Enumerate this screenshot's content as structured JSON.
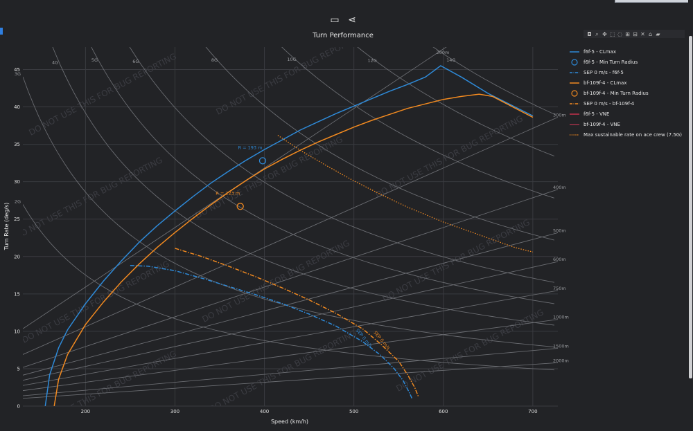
{
  "toolbar": {
    "ruler_icon": "ruler-icon",
    "share_icon": "share-icon"
  },
  "modebar_icons": [
    "camera-icon",
    "zoom-icon",
    "pan-icon",
    "box-select-icon",
    "lasso-icon",
    "zoom-in-icon",
    "zoom-out-icon",
    "autoscale-icon",
    "home-icon",
    "plotly-logo-icon"
  ],
  "chart_data": {
    "type": "line",
    "title": "Turn Performance",
    "xlabel": "Speed (km/h)",
    "ylabel": "Turn Rate (deg/s)",
    "xlim": [
      130,
      728
    ],
    "ylim": [
      0,
      48
    ],
    "xticks": [
      200,
      300,
      400,
      500,
      600,
      700
    ],
    "yticks": [
      0,
      5,
      10,
      15,
      20,
      25,
      30,
      35,
      40,
      45
    ],
    "grid": true,
    "legend_position": "right",
    "watermark": "DO NOT USE THIS FOR BUG REPORTING",
    "g_lines": [
      {
        "label": "2G",
        "n": 2
      },
      {
        "label": "3G",
        "n": 3
      },
      {
        "label": "4G",
        "n": 4
      },
      {
        "label": "5G",
        "n": 5
      },
      {
        "label": "6G",
        "n": 6
      },
      {
        "label": "8G",
        "n": 8
      },
      {
        "label": "10G",
        "n": 10
      },
      {
        "label": "12G",
        "n": 12
      },
      {
        "label": "14G",
        "n": 14
      }
    ],
    "radius_lines": [
      {
        "label": "200m",
        "r": 200
      },
      {
        "label": "300m",
        "r": 300
      },
      {
        "label": "400m",
        "r": 400
      },
      {
        "label": "500m",
        "r": 500
      },
      {
        "label": "600m",
        "r": 600
      },
      {
        "label": "750m",
        "r": 750
      },
      {
        "label": "1000m",
        "r": 1000
      },
      {
        "label": "1500m",
        "r": 1500
      },
      {
        "label": "2000m",
        "r": 2000
      }
    ],
    "series": [
      {
        "name": "f6f-5 - CLmax",
        "color": "#2e8ad8",
        "style": "solid",
        "x": [
          155,
          160,
          170,
          180,
          200,
          220,
          240,
          260,
          280,
          300,
          320,
          340,
          360,
          380,
          400,
          420,
          440,
          460,
          480,
          500,
          520,
          540,
          560,
          580,
          597,
          620,
          650,
          700
        ],
        "y": [
          0,
          4.2,
          7.8,
          10.2,
          13.7,
          16.7,
          19.4,
          21.9,
          24.1,
          26.1,
          28.0,
          29.8,
          31.4,
          32.9,
          34.3,
          35.6,
          36.9,
          38.0,
          39.1,
          40.1,
          41.1,
          42.1,
          43.0,
          44.0,
          45.5,
          44.0,
          41.8,
          38.8
        ]
      },
      {
        "name": "f6f-5 - Min Turn Radius",
        "color": "#2e8ad8",
        "style": "marker",
        "x": [
          398
        ],
        "y": [
          32.8
        ],
        "annotation": "R = 193 m"
      },
      {
        "name": "SEP 0 m/s - f6f-5",
        "color": "#2e8ad8",
        "style": "dashdot",
        "x": [
          250,
          270,
          300,
          330,
          360,
          390,
          420,
          450,
          480,
          510,
          530,
          545,
          555,
          562,
          565
        ],
        "y": [
          18.8,
          18.7,
          18.1,
          17.1,
          16.0,
          14.9,
          13.7,
          12.3,
          10.7,
          8.6,
          6.8,
          5.0,
          3.4,
          1.8,
          1.0
        ],
        "annotation": "SEP 0 m/s"
      },
      {
        "name": "bf-109f-4 - CLmax",
        "color": "#f28a20",
        "style": "solid",
        "x": [
          165,
          170,
          180,
          200,
          220,
          240,
          260,
          280,
          300,
          320,
          340,
          360,
          380,
          400,
          420,
          440,
          460,
          480,
          500,
          520,
          540,
          560,
          580,
          600,
          620,
          640,
          655,
          700
        ],
        "y": [
          0,
          3.6,
          6.9,
          10.9,
          13.9,
          16.6,
          19.0,
          21.2,
          23.2,
          25.1,
          26.9,
          28.6,
          30.2,
          31.7,
          33.0,
          34.2,
          35.3,
          36.3,
          37.3,
          38.2,
          39.0,
          39.8,
          40.4,
          41.0,
          41.4,
          41.7,
          41.4,
          38.6
        ]
      },
      {
        "name": "bf-109f-4 - Min Turn Radius",
        "color": "#f28a20",
        "style": "marker",
        "x": [
          373
        ],
        "y": [
          26.7
        ],
        "annotation": "R = 223 m"
      },
      {
        "name": "SEP 0 m/s - bf-109f-4",
        "color": "#f28a20",
        "style": "dashdot",
        "x": [
          300,
          330,
          360,
          390,
          420,
          450,
          480,
          510,
          530,
          550,
          560,
          568,
          572
        ],
        "y": [
          21.1,
          20.0,
          18.7,
          17.3,
          15.8,
          14.2,
          12.4,
          10.3,
          8.3,
          6.0,
          4.2,
          2.5,
          1.3
        ],
        "annotation": "SEP 0 m/s"
      },
      {
        "name": "f6f-5 - VNE",
        "color": "#c4314b",
        "style": "solid",
        "x": [],
        "y": []
      },
      {
        "name": "bf-109f-4 - VNE",
        "color": "#a03348",
        "style": "solid",
        "x": [],
        "y": []
      },
      {
        "name": "Max sustainable rate on ace crew (7.5G)",
        "color": "#f28a20",
        "style": "dotted",
        "x": [
          415,
          440,
          470,
          500,
          530,
          560,
          600,
          640,
          680,
          700
        ],
        "y": [
          36.2,
          34.2,
          32.1,
          30.1,
          28.3,
          26.6,
          24.6,
          22.9,
          21.2,
          20.6
        ]
      }
    ]
  }
}
